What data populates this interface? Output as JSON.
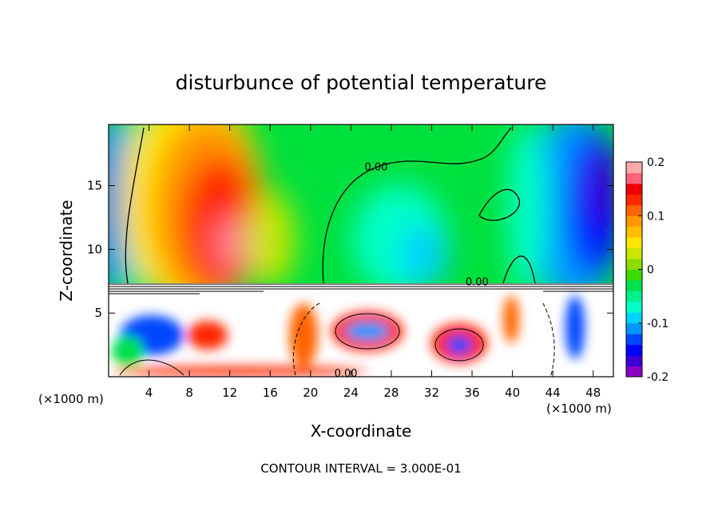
{
  "chart_data": {
    "type": "heatmap",
    "title": "disturbunce of potential temperature",
    "xlabel": "X-coordinate",
    "ylabel": "Z-coordinate",
    "x_unit_label": "(×1000 m)",
    "x_unit_label_right": "(×1000 m)",
    "xlim": [
      0,
      50
    ],
    "ylim": [
      0,
      19.8
    ],
    "x_ticks": [
      4,
      8,
      12,
      16,
      20,
      24,
      28,
      32,
      36,
      40,
      44,
      48
    ],
    "y_ticks": [
      5,
      10,
      15
    ],
    "colorbar": {
      "range": [
        -0.2,
        0.2
      ],
      "labels": [
        {
          "value": 0.2,
          "text": "0.2"
        },
        {
          "value": 0.1,
          "text": "0.1"
        },
        {
          "value": 0,
          "text": "0"
        },
        {
          "value": -0.1,
          "text": "-0.1"
        },
        {
          "value": -0.2,
          "text": "-0.2"
        }
      ],
      "colors": [
        "#8c00c8",
        "#3c00d2",
        "#0000ff",
        "#0046ff",
        "#0096ff",
        "#00d2ff",
        "#00ffc8",
        "#00f08c",
        "#00e050",
        "#3cdc00",
        "#8cdc00",
        "#c8e600",
        "#ffe600",
        "#ffbe00",
        "#ff9600",
        "#ff6400",
        "#ff2800",
        "#f00000",
        "#ff6478",
        "#ffaaaa"
      ]
    },
    "contour_labels": [
      {
        "text": "0.00",
        "x": 26.5,
        "z": 16.5
      },
      {
        "text": "0.00",
        "x": 36.5,
        "z": 7.5
      },
      {
        "text": "0.00",
        "x": 23.5,
        "z": 0.3
      }
    ],
    "contour_interval": "CONTOUR INTERVAL = 3.000E-01"
  }
}
